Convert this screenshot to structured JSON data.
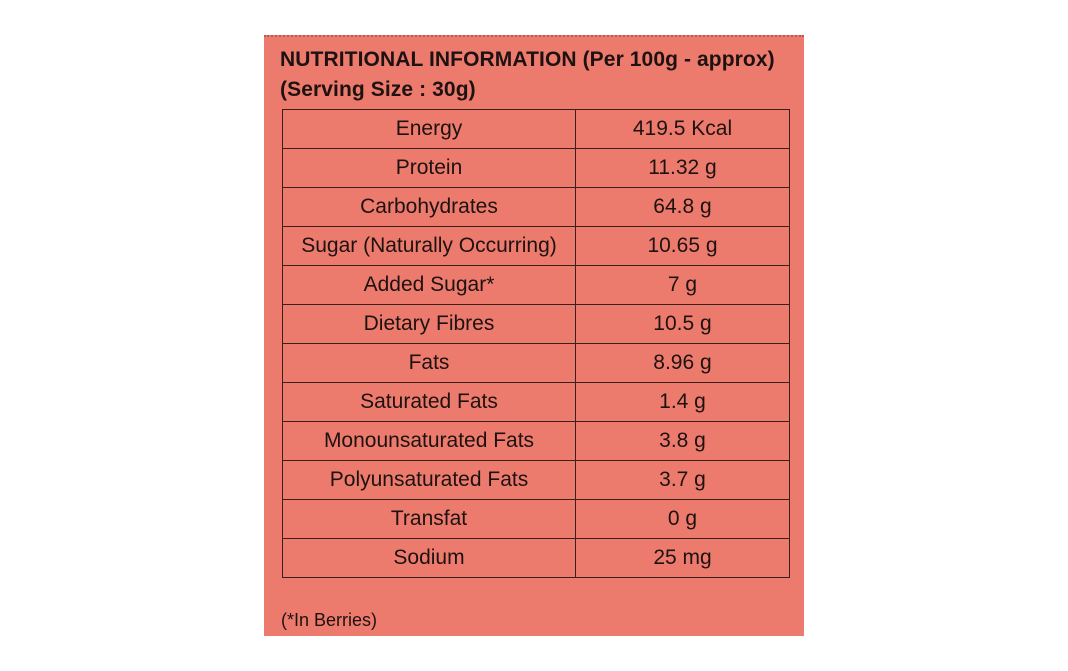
{
  "heading": {
    "line1": "NUTRITIONAL INFORMATION (Per 100g - approx)",
    "line2": "(Serving Size : 30g)"
  },
  "rows": [
    {
      "nutrient": "Energy",
      "value": "419.5 Kcal"
    },
    {
      "nutrient": "Protein",
      "value": "11.32 g"
    },
    {
      "nutrient": "Carbohydrates",
      "value": "64.8 g"
    },
    {
      "nutrient": "Sugar (Naturally Occurring)",
      "value": "10.65 g"
    },
    {
      "nutrient": "Added Sugar*",
      "value": "7 g"
    },
    {
      "nutrient": "Dietary Fibres",
      "value": "10.5 g"
    },
    {
      "nutrient": "Fats",
      "value": "8.96 g"
    },
    {
      "nutrient": "Saturated Fats",
      "value": "1.4 g"
    },
    {
      "nutrient": "Monounsaturated Fats",
      "value": "3.8 g"
    },
    {
      "nutrient": "Polyunsaturated Fats",
      "value": "3.7 g"
    },
    {
      "nutrient": "Transfat",
      "value": "0 g"
    },
    {
      "nutrient": "Sodium",
      "value": "25 mg"
    }
  ],
  "footnote": "(*In Berries)",
  "colors": {
    "panel_background": "#ec7b6e",
    "text": "#1e1210",
    "border": "#3a1f1b"
  }
}
